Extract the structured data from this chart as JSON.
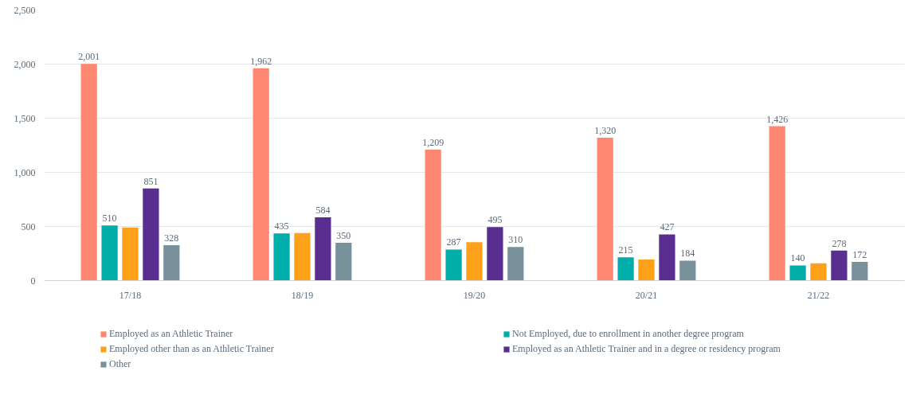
{
  "chart_data": {
    "type": "bar",
    "categories": [
      "17/18",
      "18/19",
      "19/20",
      "20/21",
      "21/22"
    ],
    "series": [
      {
        "name": "Employed as an Athletic Trainer",
        "color": "#ff8670",
        "values": [
          2001,
          1962,
          1209,
          1320,
          1426
        ],
        "value_labels": [
          "2,001",
          "1,962",
          "1,209",
          "1,320",
          "1,426"
        ]
      },
      {
        "name": "Not Employed, due to enrollment in another degree program",
        "color": "#00ada9",
        "values": [
          510,
          435,
          287,
          215,
          140
        ],
        "value_labels": [
          "510",
          "435",
          "287",
          "215",
          "140"
        ]
      },
      {
        "name": "Employed other than as an Athletic Trainer",
        "color": "#fda01a",
        "values": [
          490,
          440,
          355,
          195,
          160
        ]
      },
      {
        "name": "Employed as an Athletic Trainer and in a degree or residency program",
        "color": "#5a2d91",
        "values": [
          851,
          584,
          495,
          427,
          278
        ],
        "value_labels": [
          "851",
          "584",
          "495",
          "427",
          "278"
        ]
      },
      {
        "name": "Other",
        "color": "#78919b",
        "values": [
          328,
          350,
          310,
          184,
          172
        ],
        "value_labels": [
          "328",
          "350",
          "310",
          "184",
          "172"
        ]
      }
    ],
    "ylim": [
      0,
      2500
    ],
    "yticks": [
      {
        "value": 0,
        "label": "0"
      },
      {
        "value": 500,
        "label": "500"
      },
      {
        "value": 1000,
        "label": "1,000"
      },
      {
        "value": 1500,
        "label": "1,500"
      },
      {
        "value": 2000,
        "label": "2,000"
      },
      {
        "value": 2500,
        "label": "2,500"
      }
    ],
    "grid": "y",
    "legend": "bottom"
  }
}
